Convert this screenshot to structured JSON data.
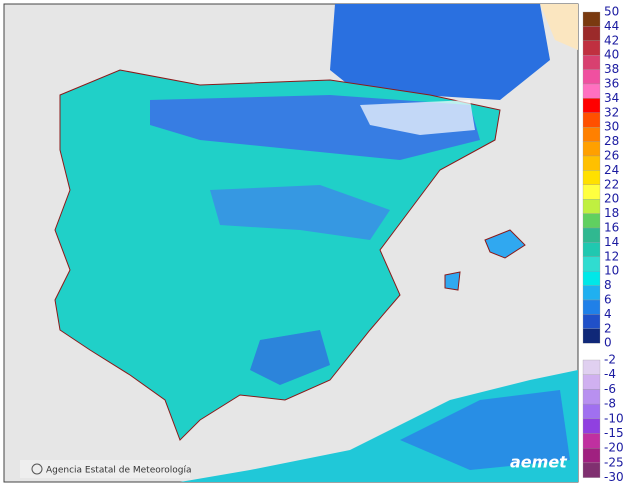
{
  "legend": {
    "positive": {
      "labels": [
        50,
        44,
        42,
        40,
        38,
        36,
        34,
        32,
        30,
        28,
        26,
        24,
        22,
        20,
        18,
        16,
        14,
        12,
        10,
        8,
        6,
        4,
        2,
        0
      ],
      "colors": [
        "#7a3a10",
        "#9b2a2a",
        "#c03040",
        "#d84070",
        "#f050a0",
        "#ff70c0",
        "#ff0000",
        "#ff5000",
        "#ff8000",
        "#ffa000",
        "#ffc000",
        "#ffe000",
        "#ffff40",
        "#c0f040",
        "#60d060",
        "#30b890",
        "#20c8b0",
        "#30dcd0",
        "#00e8e8",
        "#20b0f0",
        "#2080e8",
        "#2050c8",
        "#102878"
      ]
    },
    "negative": {
      "labels": [
        -2,
        -4,
        -6,
        -8,
        -10,
        -15,
        -20,
        -25,
        -30
      ],
      "colors": [
        "#e0d0f0",
        "#d0b0f0",
        "#b890f0",
        "#a070f0",
        "#9040e0",
        "#c030a0",
        "#a02080",
        "#803070"
      ]
    }
  },
  "credit": "Agencia Estatal de Meteorología",
  "logo": "aemet"
}
